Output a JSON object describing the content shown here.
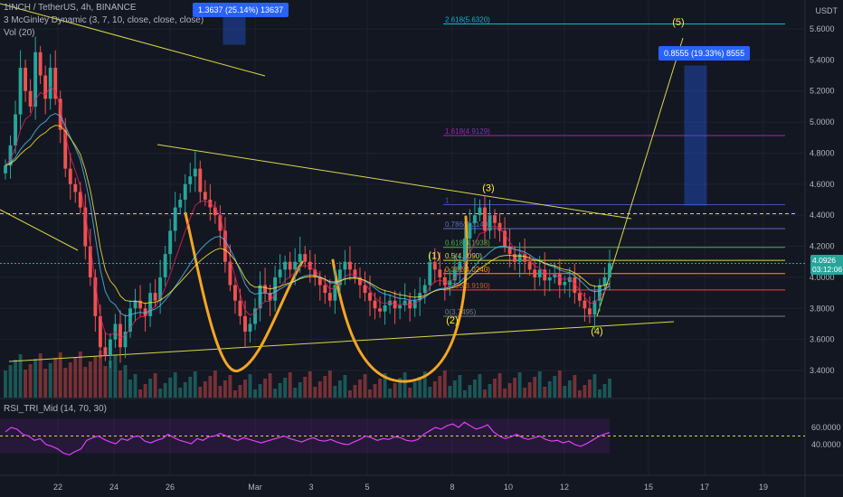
{
  "header": {
    "symbol_line": "1INCH / TetherUS, 4h, BINANCE",
    "indicator_line": "3 McGinley Dynamic (3, 7, 10, close, close, close)",
    "vol_line": "Vol (20)",
    "rsi_line": "RSI_TRI_Mid (14, 70, 30)",
    "currency": "USDT"
  },
  "price_tag": {
    "value": "4.0926",
    "countdown": "03:12:06"
  },
  "measure_boxes": [
    {
      "text": "1.3637 (25.14%) 13637"
    },
    {
      "text": "0.8555 (19.33%) 8555"
    }
  ],
  "colors": {
    "background": "#131722",
    "bull": "#26a69a",
    "bear": "#ef5350",
    "trendline": "#d7d74a",
    "cup": "#f5a623",
    "rsi": "#e040fb",
    "measure": "#2962ff"
  },
  "chart_data": {
    "type": "candlestick",
    "y_axis": {
      "min": 3.2,
      "max": 5.7,
      "ticks": [
        "5.6000",
        "5.4000",
        "5.2000",
        "5.0000",
        "4.8000",
        "4.6000",
        "4.4000",
        "4.2000",
        "4.0000",
        "3.8000",
        "3.6000",
        "3.4000"
      ]
    },
    "x_axis": {
      "ticks": [
        "22",
        "24",
        "26",
        "Mar",
        "3",
        "5",
        "8",
        "10",
        "12",
        "15",
        "17",
        "19"
      ]
    },
    "rsi_axis": {
      "ticks": [
        "60.0000",
        "40.0000"
      ],
      "upper": 70,
      "lower": 30,
      "mid": 50
    },
    "fib_levels": [
      {
        "label": "2.618(5.6320)",
        "value": 5.632,
        "color": "#00bcd4"
      },
      {
        "label": "1.618(4.9129)",
        "value": 4.9129,
        "color": "#9c27b0"
      },
      {
        "label": "1",
        "value": 4.468,
        "color": "#3f51b5"
      },
      {
        "label": "0.786(4.3140)",
        "value": 4.314,
        "color": "#5c6bc0"
      },
      {
        "label": "0.618(4.1933)",
        "value": 4.1933,
        "color": "#4caf50"
      },
      {
        "label": "0.5(4.1090)",
        "value": 4.109,
        "color": "#d7d74a"
      },
      {
        "label": "0.382(4.0240)",
        "value": 4.024,
        "color": "#ff9800"
      },
      {
        "label": "0.236(3.9190)",
        "value": 3.919,
        "color": "#f44336"
      },
      {
        "label": "0(3.7495)",
        "value": 3.7495,
        "color": "#787b86"
      }
    ],
    "wave_labels": [
      {
        "text": "(1)",
        "price": 4.1
      },
      {
        "text": "(2)",
        "price": 3.75
      },
      {
        "text": "(3)",
        "price": 4.52
      },
      {
        "text": "(4)",
        "price": 3.68
      },
      {
        "text": "(5)",
        "price": 5.6
      }
    ],
    "closes": [
      4.72,
      4.85,
      5.05,
      5.35,
      5.2,
      5.1,
      5.45,
      5.3,
      5.15,
      5.35,
      5.15,
      4.95,
      4.7,
      4.6,
      4.55,
      4.45,
      4.2,
      4.0,
      3.75,
      3.55,
      3.5,
      3.6,
      3.7,
      3.55,
      3.65,
      3.8,
      3.85,
      3.8,
      3.75,
      3.9,
      3.85,
      4.0,
      4.15,
      4.3,
      4.45,
      4.5,
      4.6,
      4.65,
      4.7,
      4.55,
      4.5,
      4.45,
      4.4,
      4.3,
      4.1,
      3.95,
      3.85,
      3.75,
      3.65,
      3.7,
      3.8,
      3.95,
      3.9,
      3.85,
      4.0,
      4.05,
      4.1,
      4.05,
      4.1,
      4.15,
      4.1,
      4.05,
      4.0,
      3.95,
      3.9,
      3.85,
      3.95,
      4.05,
      4.1,
      4.05,
      4.0,
      3.95,
      3.9,
      3.85,
      3.8,
      3.78,
      3.82,
      3.85,
      3.8,
      3.82,
      3.85,
      3.8,
      3.85,
      3.9,
      3.95,
      4.1,
      4.05,
      4.0,
      3.95,
      3.98,
      4.05,
      4.1,
      4.25,
      4.35,
      4.4,
      4.45,
      4.3,
      4.4,
      4.35,
      4.3,
      4.2,
      4.15,
      4.1,
      4.15,
      4.1,
      4.05,
      4.0,
      4.05,
      3.98,
      4.0,
      4.02,
      3.95,
      3.97,
      4.0,
      3.9,
      3.85,
      3.8,
      3.76,
      3.85,
      3.95,
      4.0,
      4.09
    ],
    "rsi": [
      55,
      60,
      58,
      52,
      50,
      45,
      47,
      40,
      38,
      35,
      30,
      28,
      32,
      35,
      45,
      48,
      50,
      46,
      43,
      41,
      47,
      45,
      49,
      50,
      44,
      42,
      45,
      47,
      52,
      48,
      45,
      43,
      41,
      47,
      45,
      49,
      50,
      53,
      50,
      47,
      45,
      48,
      46,
      44,
      42,
      44,
      46,
      48,
      50,
      47,
      45,
      43,
      46,
      48,
      45,
      44,
      46,
      43,
      41,
      40,
      43,
      46,
      50,
      48,
      45,
      47,
      46,
      49,
      48,
      45,
      44,
      46,
      52,
      56,
      60,
      58,
      62,
      64,
      60,
      66,
      62,
      58,
      60,
      63,
      55,
      50,
      47,
      49,
      52,
      48,
      46,
      48,
      50,
      46,
      44,
      45,
      42,
      44,
      40,
      38,
      41,
      45,
      49,
      52,
      54
    ]
  }
}
